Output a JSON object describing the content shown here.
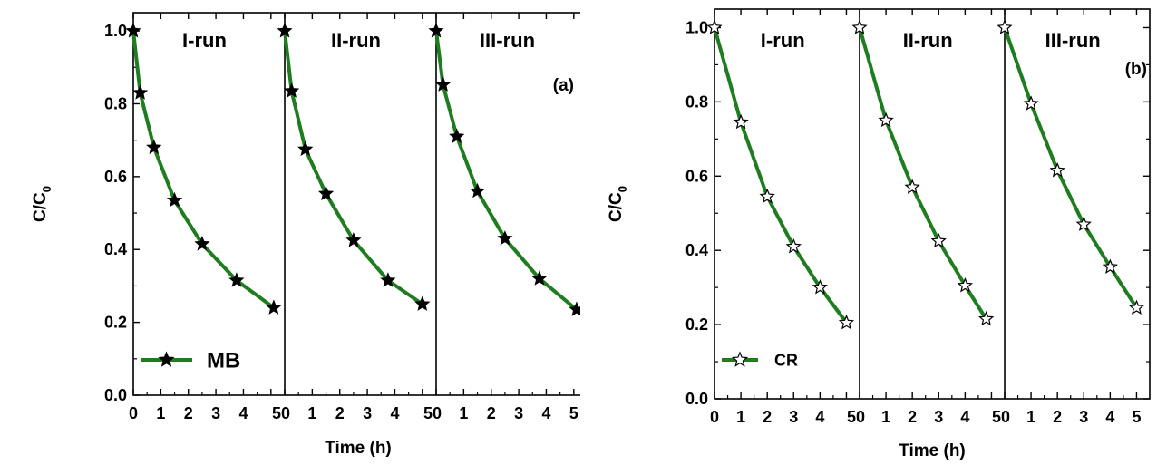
{
  "chart_data": [
    {
      "type": "line",
      "panel_label": "(a)",
      "ylabel": "C/C",
      "ylabel_sub": "0",
      "xlabel": "Time (h)",
      "ylim": [
        0,
        1.05
      ],
      "xlim": [
        0,
        5.5
      ],
      "yticks": [
        "0.0",
        "0.2",
        "0.4",
        "0.6",
        "0.8",
        "1.0"
      ],
      "xticks": [
        "0",
        "1",
        "2",
        "3",
        "4",
        "5"
      ],
      "last_xtick_merged": "50",
      "marker": "filled-star",
      "line_color": "#1e7d1e",
      "legend": {
        "label": "MB",
        "placement": "bottom-left"
      },
      "runs": [
        {
          "name": "I-run",
          "x": [
            0,
            0.25,
            0.75,
            1.5,
            2.5,
            3.75,
            5.1
          ],
          "y": [
            1.0,
            0.83,
            0.68,
            0.535,
            0.415,
            0.315,
            0.24
          ]
        },
        {
          "name": "II-run",
          "x": [
            0,
            0.25,
            0.75,
            1.5,
            2.5,
            3.75,
            5.0
          ],
          "y": [
            1.0,
            0.835,
            0.675,
            0.553,
            0.425,
            0.315,
            0.25
          ]
        },
        {
          "name": "III-run",
          "x": [
            0,
            0.25,
            0.75,
            1.5,
            2.5,
            3.75,
            5.1
          ],
          "y": [
            1.0,
            0.852,
            0.71,
            0.56,
            0.43,
            0.32,
            0.235
          ]
        }
      ]
    },
    {
      "type": "line",
      "panel_label": "(b)",
      "ylabel": "C/C",
      "ylabel_sub": "0",
      "xlabel": "Time (h)",
      "ylim": [
        0,
        1.05
      ],
      "xlim": [
        0,
        5.5
      ],
      "yticks": [
        "0.0",
        "0.2",
        "0.4",
        "0.6",
        "0.8",
        "1.0"
      ],
      "xticks": [
        "0",
        "1",
        "2",
        "3",
        "4",
        "5"
      ],
      "last_xtick_merged": "50",
      "marker": "open-star",
      "line_color": "#1e7d1e",
      "legend": {
        "label": "CR",
        "placement": "bottom-left"
      },
      "runs": [
        {
          "name": "I-run",
          "x": [
            0,
            1,
            2,
            3,
            4,
            5
          ],
          "y": [
            1.0,
            0.745,
            0.545,
            0.41,
            0.3,
            0.205
          ]
        },
        {
          "name": "II-run",
          "x": [
            0,
            1,
            2,
            3,
            4,
            4.8
          ],
          "y": [
            1.0,
            0.75,
            0.57,
            0.425,
            0.305,
            0.215
          ]
        },
        {
          "name": "III-run",
          "x": [
            0,
            1,
            2,
            3,
            4,
            5
          ],
          "y": [
            1.0,
            0.795,
            0.615,
            0.47,
            0.355,
            0.245
          ]
        }
      ]
    }
  ]
}
